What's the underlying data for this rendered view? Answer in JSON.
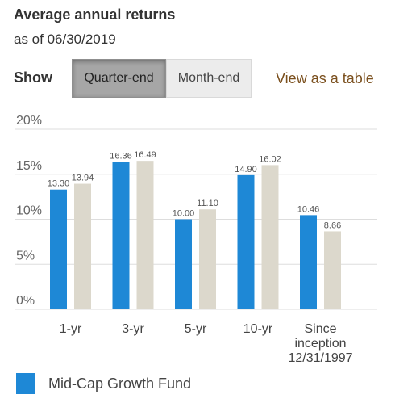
{
  "header": {
    "title": "Average annual returns",
    "subtitle": "as of 06/30/2019"
  },
  "controls": {
    "show_label": "Show",
    "quarter_end": "Quarter-end",
    "month_end": "Month-end",
    "view_table": "View as a table"
  },
  "legend": {
    "label": "Mid-Cap Growth Fund"
  },
  "colors": {
    "fund": "#1e88d6",
    "benchmark": "#dcd8cc",
    "grid": "#dddddd",
    "link": "#7a4f1d"
  },
  "chart_data": {
    "type": "bar",
    "title": "",
    "xlabel": "",
    "ylabel": "",
    "ylim": [
      0,
      20
    ],
    "yticks": [
      0,
      5,
      10,
      15,
      20
    ],
    "ytick_labels": [
      "0%",
      "5%",
      "10%",
      "15%",
      "20%"
    ],
    "categories": [
      [
        "1-yr"
      ],
      [
        "3-yr"
      ],
      [
        "5-yr"
      ],
      [
        "10-yr"
      ],
      [
        "Since",
        "inception",
        "12/31/1997"
      ]
    ],
    "series": [
      {
        "name": "Mid-Cap Growth Fund",
        "values": [
          13.3,
          16.36,
          10.0,
          14.9,
          10.46
        ],
        "labels": [
          "13.30",
          "16.36",
          "10.00",
          "14.90",
          "10.46"
        ]
      },
      {
        "values": [
          13.94,
          16.49,
          11.1,
          16.02,
          8.66
        ],
        "labels": [
          "13.94",
          "16.49",
          "11.10",
          "16.02",
          "8.66"
        ]
      }
    ],
    "grid": true,
    "legend_position": "bottom-left"
  }
}
